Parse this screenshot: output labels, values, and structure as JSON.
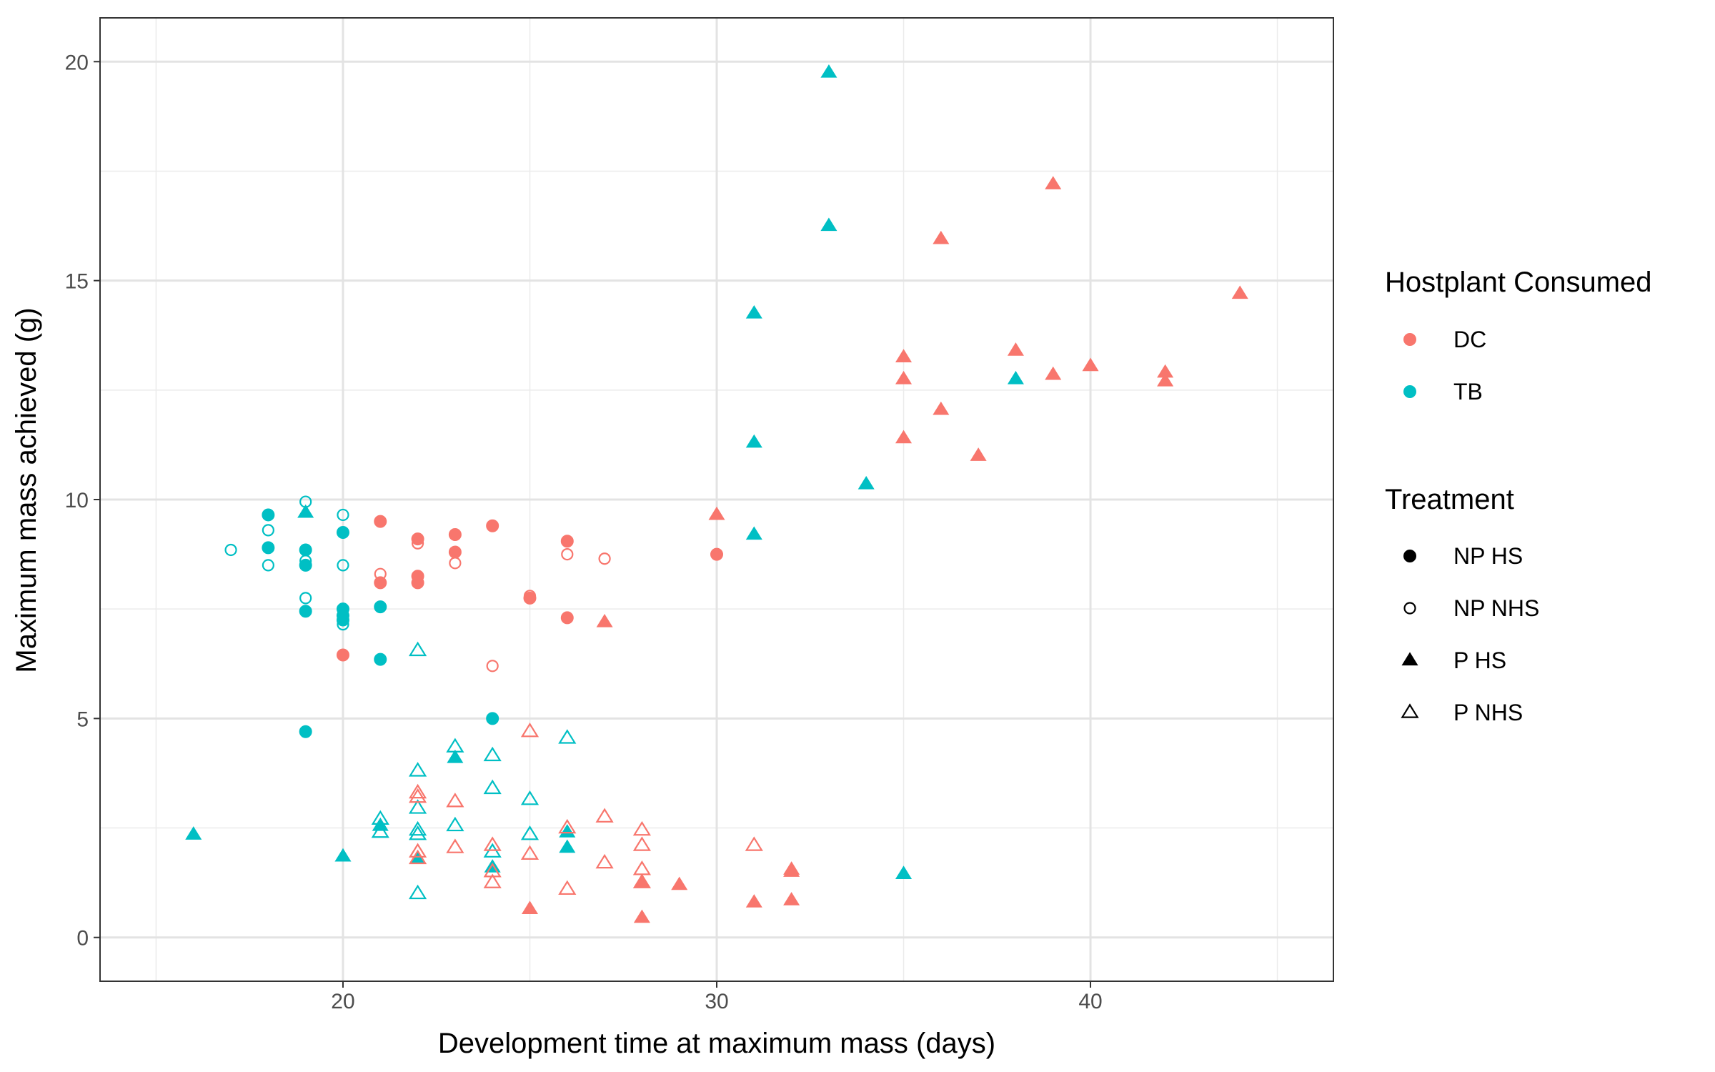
{
  "chart_data": {
    "type": "scatter",
    "title": "",
    "xlabel": "Development time at maximum mass (days)",
    "ylabel": "Maximum mass achieved (g)",
    "xlim": [
      13.5,
      46.5
    ],
    "ylim": [
      -1,
      21
    ],
    "x_ticks": [
      20,
      30,
      40
    ],
    "y_ticks": [
      0,
      5,
      10,
      15,
      20
    ],
    "grid": true,
    "legend_position": "right",
    "colors": {
      "DC": "#F8766D",
      "TB": "#00BFC4"
    },
    "legends": [
      {
        "title": "Hostplant Consumed",
        "entries": [
          "DC",
          "TB"
        ]
      },
      {
        "title": "Treatment",
        "entries": [
          "NP HS",
          "NP NHS",
          "P HS",
          "P NHS"
        ]
      }
    ],
    "series": [
      {
        "host": "TB",
        "treatment": "NP HS",
        "points": [
          [
            18,
            9.65
          ],
          [
            18,
            8.9
          ],
          [
            19,
            8.85
          ],
          [
            19,
            8.5
          ],
          [
            19,
            7.45
          ],
          [
            19,
            4.7
          ],
          [
            20,
            9.25
          ],
          [
            20,
            7.5
          ],
          [
            20,
            7.35
          ],
          [
            20,
            7.25
          ],
          [
            21,
            7.55
          ],
          [
            21,
            6.35
          ],
          [
            24,
            5.0
          ]
        ]
      },
      {
        "host": "TB",
        "treatment": "NP NHS",
        "points": [
          [
            17,
            8.85
          ],
          [
            18,
            9.3
          ],
          [
            18,
            8.5
          ],
          [
            19,
            9.95
          ],
          [
            19,
            8.6
          ],
          [
            19,
            7.75
          ],
          [
            20,
            9.65
          ],
          [
            20,
            8.5
          ],
          [
            20,
            7.15
          ]
        ]
      },
      {
        "host": "TB",
        "treatment": "P HS",
        "points": [
          [
            16,
            2.35
          ],
          [
            19,
            9.7
          ],
          [
            20,
            1.85
          ],
          [
            21,
            2.55
          ],
          [
            22,
            1.8
          ],
          [
            23,
            4.1
          ],
          [
            24,
            1.6
          ],
          [
            26,
            2.4
          ],
          [
            26,
            2.05
          ],
          [
            31,
            14.25
          ],
          [
            31,
            11.3
          ],
          [
            31,
            9.2
          ],
          [
            33,
            19.75
          ],
          [
            33,
            16.25
          ],
          [
            34,
            10.35
          ],
          [
            35,
            1.45
          ],
          [
            38,
            12.75
          ]
        ]
      },
      {
        "host": "TB",
        "treatment": "P NHS",
        "points": [
          [
            21,
            2.7
          ],
          [
            21,
            2.4
          ],
          [
            22,
            6.55
          ],
          [
            22,
            3.8
          ],
          [
            22,
            2.95
          ],
          [
            22,
            2.45
          ],
          [
            22,
            2.35
          ],
          [
            22,
            1.0
          ],
          [
            23,
            4.35
          ],
          [
            23,
            2.55
          ],
          [
            24,
            4.15
          ],
          [
            24,
            3.4
          ],
          [
            24,
            1.95
          ],
          [
            25,
            3.15
          ],
          [
            25,
            2.35
          ],
          [
            26,
            4.55
          ]
        ]
      },
      {
        "host": "DC",
        "treatment": "NP HS",
        "points": [
          [
            20,
            6.45
          ],
          [
            21,
            9.5
          ],
          [
            21,
            8.1
          ],
          [
            22,
            9.1
          ],
          [
            22,
            8.25
          ],
          [
            22,
            8.1
          ],
          [
            23,
            9.2
          ],
          [
            23,
            8.8
          ],
          [
            24,
            9.4
          ],
          [
            25,
            7.75
          ],
          [
            26,
            9.05
          ],
          [
            26,
            7.3
          ],
          [
            30,
            8.75
          ]
        ]
      },
      {
        "host": "DC",
        "treatment": "NP NHS",
        "points": [
          [
            21,
            8.3
          ],
          [
            22,
            9.0
          ],
          [
            23,
            8.55
          ],
          [
            24,
            6.2
          ],
          [
            25,
            7.8
          ],
          [
            26,
            8.75
          ],
          [
            27,
            8.65
          ]
        ]
      },
      {
        "host": "DC",
        "treatment": "P HS",
        "points": [
          [
            25,
            0.65
          ],
          [
            27,
            7.2
          ],
          [
            28,
            0.45
          ],
          [
            28,
            1.25
          ],
          [
            29,
            1.2
          ],
          [
            30,
            9.65
          ],
          [
            31,
            0.8
          ],
          [
            32,
            0.85
          ],
          [
            32,
            1.5
          ],
          [
            32,
            1.55
          ],
          [
            35,
            13.25
          ],
          [
            35,
            12.75
          ],
          [
            35,
            11.4
          ],
          [
            36,
            15.95
          ],
          [
            36,
            12.05
          ],
          [
            37,
            11.0
          ],
          [
            38,
            13.4
          ],
          [
            39,
            17.2
          ],
          [
            39,
            12.85
          ],
          [
            40,
            13.05
          ],
          [
            42,
            12.9
          ],
          [
            42,
            12.7
          ],
          [
            44,
            14.7
          ]
        ]
      },
      {
        "host": "DC",
        "treatment": "P NHS",
        "points": [
          [
            22,
            3.3
          ],
          [
            22,
            3.2
          ],
          [
            22,
            1.95
          ],
          [
            22,
            1.8
          ],
          [
            23,
            3.1
          ],
          [
            23,
            2.05
          ],
          [
            24,
            2.1
          ],
          [
            24,
            1.5
          ],
          [
            24,
            1.25
          ],
          [
            25,
            4.7
          ],
          [
            25,
            1.9
          ],
          [
            26,
            2.5
          ],
          [
            26,
            1.1
          ],
          [
            27,
            2.75
          ],
          [
            27,
            1.7
          ],
          [
            28,
            2.45
          ],
          [
            28,
            2.1
          ],
          [
            28,
            1.55
          ],
          [
            28,
            1.25
          ],
          [
            31,
            2.1
          ]
        ]
      }
    ]
  }
}
